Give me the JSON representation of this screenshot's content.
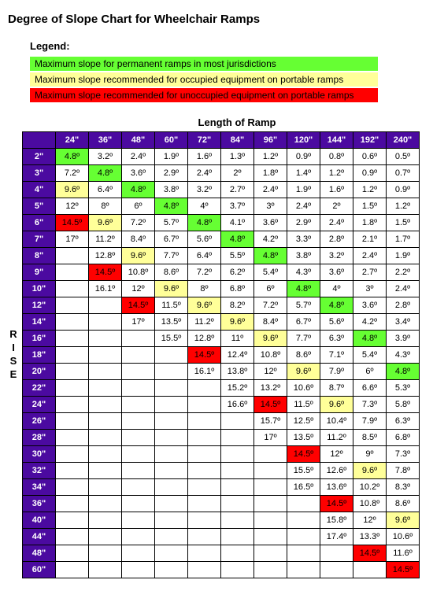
{
  "title": "Degree of Slope Chart for Wheelchair Ramps",
  "legend": {
    "title": "Legend:",
    "items": [
      {
        "text": "Maximum slope for permanent ramps in most jurisdictions",
        "cls": "green"
      },
      {
        "text": "Maximum slope recommended for occupied equipment on portable ramps",
        "cls": "yellow"
      },
      {
        "text": "Maximum slope recommended for unoccupied equipment on portable ramps",
        "cls": "red"
      }
    ]
  },
  "top_label": "Length of Ramp",
  "side_label": "RISE",
  "col_headers": [
    "24\"",
    "36\"",
    "48\"",
    "60\"",
    "72\"",
    "84\"",
    "96\"",
    "120\"",
    "144\"",
    "192\"",
    "240\""
  ],
  "row_headers": [
    "2\"",
    "3\"",
    "4\"",
    "5\"",
    "6\"",
    "7\"",
    "8\"",
    "9\"",
    "10\"",
    "12\"",
    "14\"",
    "16\"",
    "18\"",
    "20\"",
    "22\"",
    "24\"",
    "26\"",
    "28\"",
    "30\"",
    "32\"",
    "34\"",
    "36\"",
    "40\"",
    "44\"",
    "48\"",
    "60\""
  ],
  "cells": [
    [
      [
        "4.8º",
        "green"
      ],
      [
        "3.2º",
        ""
      ],
      [
        "2.4º",
        ""
      ],
      [
        "1.9º",
        ""
      ],
      [
        "1.6º",
        ""
      ],
      [
        "1.3º",
        ""
      ],
      [
        "1.2º",
        ""
      ],
      [
        "0.9º",
        ""
      ],
      [
        "0.8º",
        ""
      ],
      [
        "0.6º",
        ""
      ],
      [
        "0.5º",
        ""
      ]
    ],
    [
      [
        "7.2º",
        ""
      ],
      [
        "4.8º",
        "green"
      ],
      [
        "3.6º",
        ""
      ],
      [
        "2.9º",
        ""
      ],
      [
        "2.4º",
        ""
      ],
      [
        "2º",
        ""
      ],
      [
        "1.8º",
        ""
      ],
      [
        "1.4º",
        ""
      ],
      [
        "1.2º",
        ""
      ],
      [
        "0.9º",
        ""
      ],
      [
        "0.7º",
        ""
      ]
    ],
    [
      [
        "9.6º",
        "yellow"
      ],
      [
        "6.4º",
        ""
      ],
      [
        "4.8º",
        "green"
      ],
      [
        "3.8º",
        ""
      ],
      [
        "3.2º",
        ""
      ],
      [
        "2.7º",
        ""
      ],
      [
        "2.4º",
        ""
      ],
      [
        "1.9º",
        ""
      ],
      [
        "1.6º",
        ""
      ],
      [
        "1.2º",
        ""
      ],
      [
        "0.9º",
        ""
      ]
    ],
    [
      [
        "12º",
        ""
      ],
      [
        "8º",
        ""
      ],
      [
        "6º",
        ""
      ],
      [
        "4.8º",
        "green"
      ],
      [
        "4º",
        ""
      ],
      [
        "3.7º",
        ""
      ],
      [
        "3º",
        ""
      ],
      [
        "2.4º",
        ""
      ],
      [
        "2º",
        ""
      ],
      [
        "1.5º",
        ""
      ],
      [
        "1.2º",
        ""
      ]
    ],
    [
      [
        "14.5º",
        "red"
      ],
      [
        "9.6º",
        "yellow"
      ],
      [
        "7.2º",
        ""
      ],
      [
        "5.7º",
        ""
      ],
      [
        "4.8º",
        "green"
      ],
      [
        "4.1º",
        ""
      ],
      [
        "3.6º",
        ""
      ],
      [
        "2.9º",
        ""
      ],
      [
        "2.4º",
        ""
      ],
      [
        "1.8º",
        ""
      ],
      [
        "1.5º",
        ""
      ]
    ],
    [
      [
        "17º",
        ""
      ],
      [
        "11.2º",
        ""
      ],
      [
        "8.4º",
        ""
      ],
      [
        "6.7º",
        ""
      ],
      [
        "5.6º",
        ""
      ],
      [
        "4.8º",
        "green"
      ],
      [
        "4.2º",
        ""
      ],
      [
        "3.3º",
        ""
      ],
      [
        "2.8º",
        ""
      ],
      [
        "2.1º",
        ""
      ],
      [
        "1.7º",
        ""
      ]
    ],
    [
      [
        "",
        ""
      ],
      [
        "12.8º",
        ""
      ],
      [
        "9.6º",
        "yellow"
      ],
      [
        "7.7º",
        ""
      ],
      [
        "6.4º",
        ""
      ],
      [
        "5.5º",
        ""
      ],
      [
        "4.8º",
        "green"
      ],
      [
        "3.8º",
        ""
      ],
      [
        "3.2º",
        ""
      ],
      [
        "2.4º",
        ""
      ],
      [
        "1.9º",
        ""
      ]
    ],
    [
      [
        "",
        ""
      ],
      [
        "14.5º",
        "red"
      ],
      [
        "10.8º",
        ""
      ],
      [
        "8.6º",
        ""
      ],
      [
        "7.2º",
        ""
      ],
      [
        "6.2º",
        ""
      ],
      [
        "5.4º",
        ""
      ],
      [
        "4.3º",
        ""
      ],
      [
        "3.6º",
        ""
      ],
      [
        "2.7º",
        ""
      ],
      [
        "2.2º",
        ""
      ]
    ],
    [
      [
        "",
        ""
      ],
      [
        "16.1º",
        ""
      ],
      [
        "12º",
        ""
      ],
      [
        "9.6º",
        "yellow"
      ],
      [
        "8º",
        ""
      ],
      [
        "6.8º",
        ""
      ],
      [
        "6º",
        ""
      ],
      [
        "4.8º",
        "green"
      ],
      [
        "4º",
        ""
      ],
      [
        "3º",
        ""
      ],
      [
        "2.4º",
        ""
      ]
    ],
    [
      [
        "",
        ""
      ],
      [
        "",
        ""
      ],
      [
        "14.5º",
        "red"
      ],
      [
        "11.5º",
        ""
      ],
      [
        "9.6º",
        "yellow"
      ],
      [
        "8.2º",
        ""
      ],
      [
        "7.2º",
        ""
      ],
      [
        "5.7º",
        ""
      ],
      [
        "4.8º",
        "green"
      ],
      [
        "3.6º",
        ""
      ],
      [
        "2.8º",
        ""
      ]
    ],
    [
      [
        "",
        ""
      ],
      [
        "",
        ""
      ],
      [
        "17º",
        ""
      ],
      [
        "13.5º",
        ""
      ],
      [
        "11.2º",
        ""
      ],
      [
        "9.6º",
        "yellow"
      ],
      [
        "8.4º",
        ""
      ],
      [
        "6.7º",
        ""
      ],
      [
        "5.6º",
        ""
      ],
      [
        "4.2º",
        ""
      ],
      [
        "3.4º",
        ""
      ]
    ],
    [
      [
        "",
        ""
      ],
      [
        "",
        ""
      ],
      [
        "",
        ""
      ],
      [
        "15.5º",
        ""
      ],
      [
        "12.8º",
        ""
      ],
      [
        "11º",
        ""
      ],
      [
        "9.6º",
        "yellow"
      ],
      [
        "7.7º",
        ""
      ],
      [
        "6.3º",
        ""
      ],
      [
        "4.8º",
        "green"
      ],
      [
        "3.9º",
        ""
      ]
    ],
    [
      [
        "",
        ""
      ],
      [
        "",
        ""
      ],
      [
        "",
        ""
      ],
      [
        "",
        ""
      ],
      [
        "14.5º",
        "red"
      ],
      [
        "12.4º",
        ""
      ],
      [
        "10.8º",
        ""
      ],
      [
        "8.6º",
        ""
      ],
      [
        "7.1º",
        ""
      ],
      [
        "5.4º",
        ""
      ],
      [
        "4.3º",
        ""
      ]
    ],
    [
      [
        "",
        ""
      ],
      [
        "",
        ""
      ],
      [
        "",
        ""
      ],
      [
        "",
        ""
      ],
      [
        "16.1º",
        ""
      ],
      [
        "13.8º",
        ""
      ],
      [
        "12º",
        ""
      ],
      [
        "9.6º",
        "yellow"
      ],
      [
        "7.9º",
        ""
      ],
      [
        "6º",
        ""
      ],
      [
        "4.8º",
        "green"
      ]
    ],
    [
      [
        "",
        ""
      ],
      [
        "",
        ""
      ],
      [
        "",
        ""
      ],
      [
        "",
        ""
      ],
      [
        "",
        ""
      ],
      [
        "15.2º",
        ""
      ],
      [
        "13.2º",
        ""
      ],
      [
        "10.6º",
        ""
      ],
      [
        "8.7º",
        ""
      ],
      [
        "6.6º",
        ""
      ],
      [
        "5.3º",
        ""
      ]
    ],
    [
      [
        "",
        ""
      ],
      [
        "",
        ""
      ],
      [
        "",
        ""
      ],
      [
        "",
        ""
      ],
      [
        "",
        ""
      ],
      [
        "16.6º",
        ""
      ],
      [
        "14.5º",
        "red"
      ],
      [
        "11.5º",
        ""
      ],
      [
        "9.6º",
        "yellow"
      ],
      [
        "7.3º",
        ""
      ],
      [
        "5.8º",
        ""
      ]
    ],
    [
      [
        "",
        ""
      ],
      [
        "",
        ""
      ],
      [
        "",
        ""
      ],
      [
        "",
        ""
      ],
      [
        "",
        ""
      ],
      [
        "",
        ""
      ],
      [
        "15.7º",
        ""
      ],
      [
        "12.5º",
        ""
      ],
      [
        "10.4º",
        ""
      ],
      [
        "7.9º",
        ""
      ],
      [
        "6.3º",
        ""
      ]
    ],
    [
      [
        "",
        ""
      ],
      [
        "",
        ""
      ],
      [
        "",
        ""
      ],
      [
        "",
        ""
      ],
      [
        "",
        ""
      ],
      [
        "",
        ""
      ],
      [
        "17º",
        ""
      ],
      [
        "13.5º",
        ""
      ],
      [
        "11.2º",
        ""
      ],
      [
        "8.5º",
        ""
      ],
      [
        "6.8º",
        ""
      ]
    ],
    [
      [
        "",
        ""
      ],
      [
        "",
        ""
      ],
      [
        "",
        ""
      ],
      [
        "",
        ""
      ],
      [
        "",
        ""
      ],
      [
        "",
        ""
      ],
      [
        "",
        ""
      ],
      [
        "14.5º",
        "red"
      ],
      [
        "12º",
        ""
      ],
      [
        "9º",
        ""
      ],
      [
        "7.3º",
        ""
      ]
    ],
    [
      [
        "",
        ""
      ],
      [
        "",
        ""
      ],
      [
        "",
        ""
      ],
      [
        "",
        ""
      ],
      [
        "",
        ""
      ],
      [
        "",
        ""
      ],
      [
        "",
        ""
      ],
      [
        "15.5º",
        ""
      ],
      [
        "12.6º",
        ""
      ],
      [
        "9.6º",
        "yellow"
      ],
      [
        "7.8º",
        ""
      ]
    ],
    [
      [
        "",
        ""
      ],
      [
        "",
        ""
      ],
      [
        "",
        ""
      ],
      [
        "",
        ""
      ],
      [
        "",
        ""
      ],
      [
        "",
        ""
      ],
      [
        "",
        ""
      ],
      [
        "16.5º",
        ""
      ],
      [
        "13.6º",
        ""
      ],
      [
        "10.2º",
        ""
      ],
      [
        "8.3º",
        ""
      ]
    ],
    [
      [
        "",
        ""
      ],
      [
        "",
        ""
      ],
      [
        "",
        ""
      ],
      [
        "",
        ""
      ],
      [
        "",
        ""
      ],
      [
        "",
        ""
      ],
      [
        "",
        ""
      ],
      [
        "",
        ""
      ],
      [
        "14.5º",
        "red"
      ],
      [
        "10.8º",
        ""
      ],
      [
        "8.6º",
        ""
      ]
    ],
    [
      [
        "",
        ""
      ],
      [
        "",
        ""
      ],
      [
        "",
        ""
      ],
      [
        "",
        ""
      ],
      [
        "",
        ""
      ],
      [
        "",
        ""
      ],
      [
        "",
        ""
      ],
      [
        "",
        ""
      ],
      [
        "15.8º",
        ""
      ],
      [
        "12º",
        ""
      ],
      [
        "9.6º",
        "yellow"
      ]
    ],
    [
      [
        "",
        ""
      ],
      [
        "",
        ""
      ],
      [
        "",
        ""
      ],
      [
        "",
        ""
      ],
      [
        "",
        ""
      ],
      [
        "",
        ""
      ],
      [
        "",
        ""
      ],
      [
        "",
        ""
      ],
      [
        "17.4º",
        ""
      ],
      [
        "13.3º",
        ""
      ],
      [
        "10.6º",
        ""
      ]
    ],
    [
      [
        "",
        ""
      ],
      [
        "",
        ""
      ],
      [
        "",
        ""
      ],
      [
        "",
        ""
      ],
      [
        "",
        ""
      ],
      [
        "",
        ""
      ],
      [
        "",
        ""
      ],
      [
        "",
        ""
      ],
      [
        "",
        ""
      ],
      [
        "14.5º",
        "red"
      ],
      [
        "11.6º",
        ""
      ]
    ],
    [
      [
        "",
        ""
      ],
      [
        "",
        ""
      ],
      [
        "",
        ""
      ],
      [
        "",
        ""
      ],
      [
        "",
        ""
      ],
      [
        "",
        ""
      ],
      [
        "",
        ""
      ],
      [
        "",
        ""
      ],
      [
        "",
        ""
      ],
      [
        "",
        ""
      ],
      [
        "14.5º",
        "red"
      ]
    ]
  ],
  "colors": {
    "header_bg": "#4b0aa0",
    "header_fg": "#ffffff",
    "green": "#66ff33",
    "yellow": "#ffff99",
    "red": "#ff0000",
    "background": "#ffffff",
    "border": "#000000"
  }
}
